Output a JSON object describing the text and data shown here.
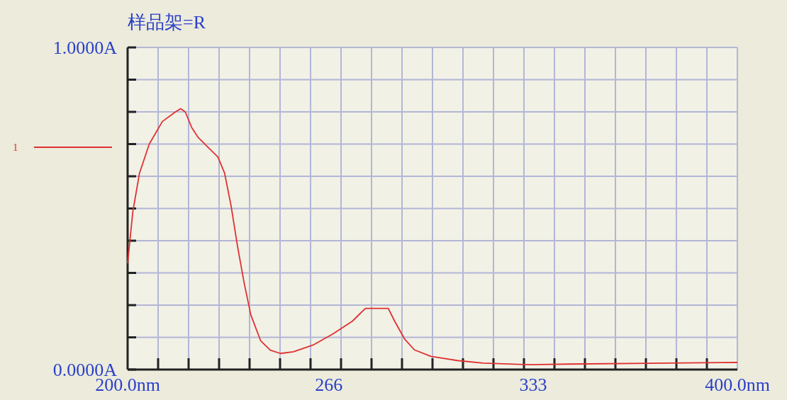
{
  "chart_data": {
    "type": "line",
    "title": "样品架=R",
    "xlim": [
      200,
      400
    ],
    "ylim": [
      0,
      1
    ],
    "xticks": [
      {
        "value": 200,
        "label": "200.0nm"
      },
      {
        "value": 210,
        "label": null
      },
      {
        "value": 220,
        "label": null
      },
      {
        "value": 230,
        "label": null
      },
      {
        "value": 240,
        "label": null
      },
      {
        "value": 250,
        "label": null
      },
      {
        "value": 260,
        "label": null
      },
      {
        "value": 266,
        "label": "266"
      },
      {
        "value": 270,
        "label": null
      },
      {
        "value": 280,
        "label": null
      },
      {
        "value": 290,
        "label": null
      },
      {
        "value": 300,
        "label": null
      },
      {
        "value": 310,
        "label": null
      },
      {
        "value": 320,
        "label": null
      },
      {
        "value": 330,
        "label": null
      },
      {
        "value": 333,
        "label": "333"
      },
      {
        "value": 340,
        "label": null
      },
      {
        "value": 350,
        "label": null
      },
      {
        "value": 360,
        "label": null
      },
      {
        "value": 370,
        "label": null
      },
      {
        "value": 380,
        "label": null
      },
      {
        "value": 390,
        "label": null
      },
      {
        "value": 400,
        "label": "400.0nm"
      }
    ],
    "yticks": [
      {
        "value": 0,
        "label": "0.0000A"
      },
      {
        "value": 0.1,
        "label": null
      },
      {
        "value": 0.2,
        "label": null
      },
      {
        "value": 0.3,
        "label": null
      },
      {
        "value": 0.4,
        "label": null
      },
      {
        "value": 0.5,
        "label": null
      },
      {
        "value": 0.6,
        "label": null
      },
      {
        "value": 0.7,
        "label": null
      },
      {
        "value": 0.8,
        "label": null
      },
      {
        "value": 0.9,
        "label": null
      },
      {
        "value": 1,
        "label": "1.0000A"
      }
    ],
    "grid": true,
    "legend": "left",
    "marker": "none",
    "line_style": "solid",
    "series": [
      {
        "name": "1",
        "color": "#e03030",
        "x": [
          200,
          201.7,
          203.9,
          207.1,
          211.4,
          215.7,
          217.4,
          218.9,
          221.1,
          223.2,
          226.4,
          229.6,
          231.8,
          233.9,
          236.1,
          238.2,
          240.4,
          243.6,
          246.8,
          250.1,
          254.4,
          260.8,
          267.2,
          273.7,
          278.0,
          281.2,
          285.5,
          287.6,
          290.9,
          294.1,
          299.5,
          308.1,
          316.6,
          331.7,
          344.6,
          376.8,
          400
        ],
        "values": [
          0.33,
          0.49,
          0.61,
          0.7,
          0.77,
          0.8,
          0.81,
          0.8,
          0.75,
          0.72,
          0.69,
          0.66,
          0.61,
          0.51,
          0.38,
          0.27,
          0.17,
          0.09,
          0.06,
          0.05,
          0.055,
          0.076,
          0.11,
          0.15,
          0.19,
          0.19,
          0.19,
          0.15,
          0.094,
          0.061,
          0.041,
          0.028,
          0.02,
          0.015,
          0.017,
          0.02,
          0.022
        ]
      }
    ]
  }
}
